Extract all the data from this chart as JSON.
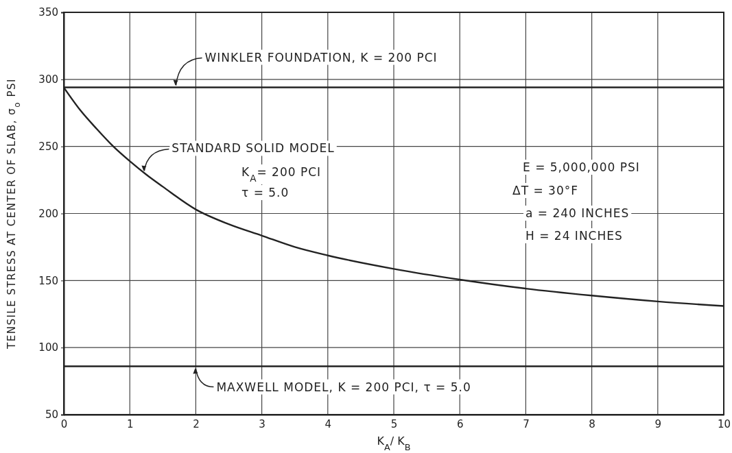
{
  "chart_data": {
    "type": "line",
    "xlabel": "K$_{A}$/ K$_{B}$",
    "ylabel": "TENSILE STRESS AT CENTER OF SLAB,  σ$_{o}$  PSI",
    "series": [
      {
        "name": "WINKLER FOUNDATION, K = 200 PCI",
        "color": "#222222",
        "x": [
          0,
          10
        ],
        "values": [
          294,
          294
        ]
      },
      {
        "name": "STANDARD SOLID MODEL",
        "color": "#222222",
        "x": [
          0,
          0.25,
          0.5,
          0.75,
          1,
          1.25,
          1.5,
          2,
          2.5,
          3,
          3.5,
          4,
          5,
          6,
          7,
          8,
          9,
          10
        ],
        "values": [
          294,
          277,
          263,
          250,
          239,
          229,
          220,
          203,
          192,
          183.5,
          175,
          168.7,
          158.7,
          150.7,
          144,
          138.8,
          134.4,
          131
        ]
      },
      {
        "name": "MAXWELL MODEL,  K = 200 PCI,  τ = 5.0",
        "color": "#222222",
        "x": [
          0,
          10
        ],
        "values": [
          86,
          86
        ]
      }
    ],
    "annotations": [
      "K$_{A}$= 200 PCI",
      "τ = 5.0",
      "E = 5,000,000 PSI",
      "ΔT = 30°F",
      "a = 240 INCHES",
      "H = 24 INCHES"
    ],
    "xlim": [
      0,
      10
    ],
    "xticks": [
      0,
      1,
      2,
      3,
      4,
      5,
      6,
      7,
      8,
      9,
      10
    ],
    "ylim": [
      50,
      350
    ],
    "yticks": [
      50,
      100,
      150,
      200,
      250,
      300,
      350
    ],
    "grid": true,
    "legend": false,
    "marker": "none",
    "line_style": "solid"
  }
}
